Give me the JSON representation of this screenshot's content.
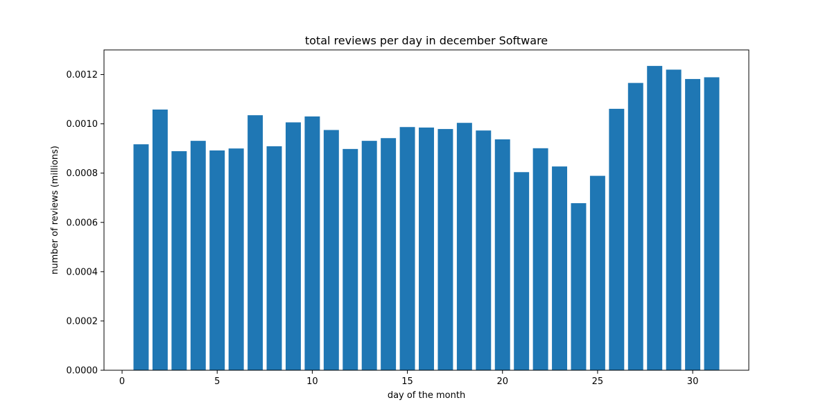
{
  "chart_data": {
    "type": "bar",
    "title": "total reviews per day in december Software",
    "xlabel": "day of the month",
    "ylabel": "number of reviews (millions)",
    "x": [
      1,
      2,
      3,
      4,
      5,
      6,
      7,
      8,
      9,
      10,
      11,
      12,
      13,
      14,
      15,
      16,
      17,
      18,
      19,
      20,
      21,
      22,
      23,
      24,
      25,
      26,
      27,
      28,
      29,
      30,
      31
    ],
    "values": [
      0.000917,
      0.001058,
      0.000889,
      0.000931,
      0.000892,
      0.0009,
      0.001035,
      0.000909,
      0.001006,
      0.00103,
      0.000975,
      0.000898,
      0.000931,
      0.000942,
      0.000987,
      0.000985,
      0.000979,
      0.001004,
      0.000973,
      0.000937,
      0.000804,
      0.000901,
      0.000827,
      0.000678,
      0.000789,
      0.001061,
      0.001166,
      0.001235,
      0.00122,
      0.001182,
      0.001189
    ],
    "xlim": [
      -0.95,
      32.95
    ],
    "ylim": [
      0,
      0.0013
    ],
    "xticks": [
      0,
      5,
      10,
      15,
      20,
      25,
      30
    ],
    "xtick_labels": [
      "0",
      "5",
      "10",
      "15",
      "20",
      "25",
      "30"
    ],
    "yticks": [
      0,
      0.0002,
      0.0004,
      0.0006,
      0.0008,
      0.001,
      0.0012
    ],
    "ytick_labels": [
      "0.0000",
      "0.0002",
      "0.0004",
      "0.0006",
      "0.0008",
      "0.0010",
      "0.0012"
    ],
    "grid": false,
    "bar_color": "#1f77b4"
  }
}
